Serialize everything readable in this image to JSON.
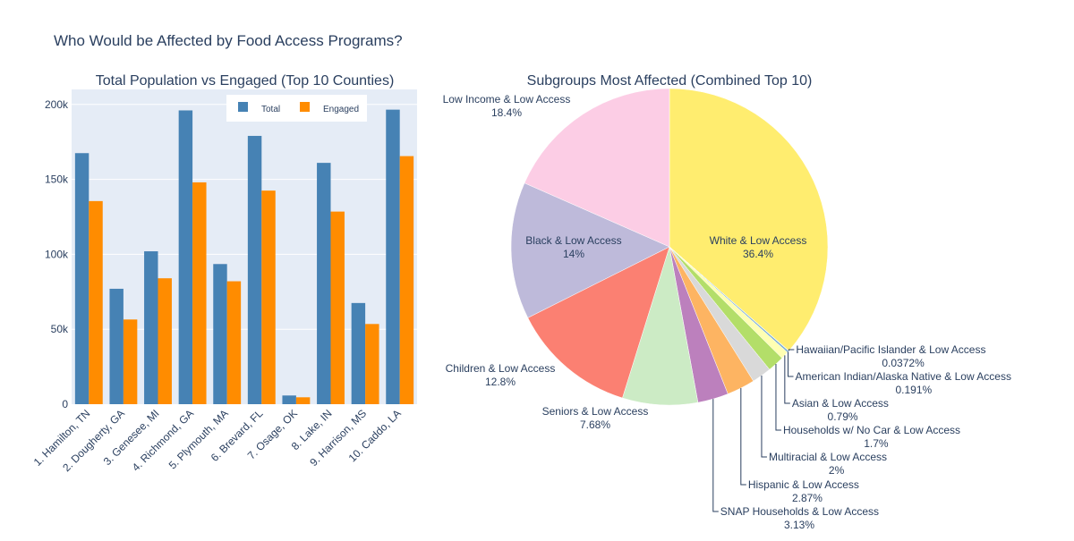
{
  "title": "Who Would be Affected by Food Access Programs?",
  "chart_data": [
    {
      "type": "bar",
      "title": "Total Population vs Engaged (Top 10 Counties)",
      "categories": [
        "1. Hamilton, TN",
        "2. Dougherty, GA",
        "3. Genesee, MI",
        "4. Richmond, GA",
        "5. Plymouth, MA",
        "6. Brevard, FL",
        "7. Osage, OK",
        "8. Lake, IN",
        "9. Harrison, MS",
        "10. Caddo, LA"
      ],
      "series": [
        {
          "name": "Total",
          "color": "#4682b4",
          "values": [
            167500,
            77000,
            102000,
            196000,
            93500,
            179000,
            5800,
            161000,
            67500,
            196500
          ]
        },
        {
          "name": "Engaged",
          "color": "#ff8c00",
          "values": [
            135500,
            56500,
            84000,
            148000,
            82000,
            142500,
            4600,
            128500,
            53500,
            165500
          ]
        }
      ],
      "ylim": [
        0,
        210000
      ],
      "yticks": [
        0,
        50000,
        100000,
        150000,
        200000
      ],
      "ytick_labels": [
        "0",
        "50k",
        "100k",
        "150k",
        "200k"
      ],
      "grid": true,
      "legend": "top-right"
    },
    {
      "type": "pie",
      "title": "Subgroups Most Affected (Combined Top 10)",
      "slices": [
        {
          "label": "White & Low Access",
          "percent": "36.4%",
          "value": 36.4,
          "color": "#ffed6f"
        },
        {
          "label": "Hawaiian/Pacific Islander & Low Access",
          "percent": "0.0372%",
          "value": 0.0372,
          "color": "#b3de69"
        },
        {
          "label": "American Indian/Alaska Native & Low Access",
          "percent": "0.191%",
          "value": 0.191,
          "color": "#80b1d3"
        },
        {
          "label": "Asian & Low Access",
          "percent": "0.79%",
          "value": 0.79,
          "color": "#ffffb3"
        },
        {
          "label": "Households w/ No Car & Low Access",
          "percent": "1.7%",
          "value": 1.7,
          "color": "#b3de69"
        },
        {
          "label": "Multiracial & Low Access",
          "percent": "2%",
          "value": 2.0,
          "color": "#d9d9d9"
        },
        {
          "label": "Hispanic & Low Access",
          "percent": "2.87%",
          "value": 2.87,
          "color": "#fdb462"
        },
        {
          "label": "SNAP Households & Low Access",
          "percent": "3.13%",
          "value": 3.13,
          "color": "#bc80bd"
        },
        {
          "label": "Seniors & Low Access",
          "percent": "7.68%",
          "value": 7.68,
          "color": "#ccebc5"
        },
        {
          "label": "Children & Low Access",
          "percent": "12.8%",
          "value": 12.8,
          "color": "#fb8072"
        },
        {
          "label": "Black & Low Access",
          "percent": "14%",
          "value": 14.0,
          "color": "#bebada"
        },
        {
          "label": "Low Income & Low Access",
          "percent": "18.4%",
          "value": 18.4,
          "color": "#fccde5"
        }
      ]
    }
  ]
}
